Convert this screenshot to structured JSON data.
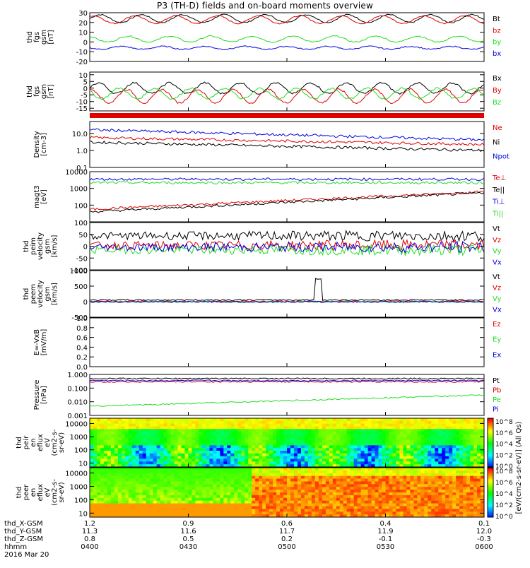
{
  "title": "P3 (TH-D) fields and on-board moments overview",
  "footer": {
    "row_labels": [
      "thd_X-GSM",
      "thd_Y-GSM",
      "thd_Z-GSM",
      "hhmm",
      "2016 Mar 20"
    ],
    "columns": [
      {
        "x": "1.2",
        "y": "11.3",
        "z": "0.8",
        "t": "0400"
      },
      {
        "x": "0.9",
        "y": "11.6",
        "z": "0.5",
        "t": "0430"
      },
      {
        "x": "0.6",
        "y": "11.7",
        "z": "0.2",
        "t": "0500"
      },
      {
        "x": "0.4",
        "y": "11.9",
        "z": "-0.1",
        "t": "0530"
      },
      {
        "x": "0.1",
        "y": "12.0",
        "z": "-0.3",
        "t": "0600"
      }
    ]
  },
  "colorbar": {
    "label": "[eV/(cm2-s-sr-eV)] (All Qs)",
    "ticks_ions": [
      "10^8",
      "10^6",
      "10^4",
      "10^2",
      "10^0"
    ],
    "ticks_electrons": [
      "10^8",
      "10^6",
      "10^4",
      "10^2",
      "10^0"
    ]
  },
  "colors": {
    "black": "#000000",
    "red": "#e00000",
    "green": "#22dd22",
    "blue": "#0000dd"
  },
  "chart_data": [
    {
      "id": "fgs",
      "type": "line",
      "ylabel": [
        "thd",
        "fgs",
        "gsm",
        "[nT]"
      ],
      "yticks": [
        "30",
        "20",
        "10",
        "0",
        "-10",
        "-20"
      ],
      "ylim": [
        -20,
        30
      ],
      "legend": [
        {
          "name": "Bt",
          "color": "#000000"
        },
        {
          "name": "bz",
          "color": "#e00000"
        },
        {
          "name": "by",
          "color": "#22dd22"
        },
        {
          "name": "bx",
          "color": "#0000dd"
        }
      ],
      "series": [
        {
          "name": "Bt",
          "base": 24,
          "amp": 4
        },
        {
          "name": "bz",
          "base": 23,
          "amp": 4
        },
        {
          "name": "by",
          "base": 3,
          "amp": 3
        },
        {
          "name": "bx",
          "base": -6,
          "amp": 1.5
        }
      ]
    },
    {
      "id": "fgs_dsl",
      "type": "line",
      "ylabel": [
        "thd",
        "fgs",
        "gsm",
        "[nT]"
      ],
      "yticks": [
        "10",
        "5",
        "0",
        "-5",
        "-10",
        "-15"
      ],
      "ylim": [
        -17,
        12
      ],
      "legend": [
        {
          "name": "Bx",
          "color": "#000000"
        },
        {
          "name": "By",
          "color": "#e00000"
        },
        {
          "name": "Bz",
          "color": "#22dd22"
        }
      ],
      "series": [
        {
          "name": "Bx",
          "base": 0,
          "amp": 4
        },
        {
          "name": "By",
          "base": -6,
          "amp": 5
        },
        {
          "name": "Bz",
          "base": -4,
          "amp": 4
        }
      ]
    },
    {
      "id": "density",
      "type": "line",
      "ylabel": [
        "Density",
        "[cm-3]"
      ],
      "yticks": [
        "10.0",
        "1.0",
        "0.1"
      ],
      "ylim": [
        0.1,
        50
      ],
      "log": true,
      "legend": [
        {
          "name": "Ne",
          "color": "#e00000"
        },
        {
          "name": "Ni",
          "color": "#000000"
        },
        {
          "name": "Npot",
          "color": "#0000dd"
        }
      ]
    },
    {
      "id": "temperature",
      "type": "line",
      "ylabel": [
        "magt3",
        "[eV]"
      ],
      "yticks": [
        "10000",
        "1000",
        "100"
      ],
      "ylim": [
        10,
        10000
      ],
      "log": true,
      "legend": [
        {
          "name": "Te⊥",
          "color": "#e00000"
        },
        {
          "name": "Te||",
          "color": "#000000"
        },
        {
          "name": "Ti⊥",
          "color": "#0000dd"
        },
        {
          "name": "Ti||",
          "color": "#22dd22"
        }
      ]
    },
    {
      "id": "peim_velocity",
      "type": "line",
      "ylabel": [
        "thd",
        "peim",
        "velocity",
        "gsm",
        "[km/s]"
      ],
      "yticks": [
        "100",
        "50",
        "0",
        "-50",
        "-100"
      ],
      "ylim": [
        -100,
        100
      ],
      "legend": [
        {
          "name": "Vt",
          "color": "#000000"
        },
        {
          "name": "Vz",
          "color": "#e00000"
        },
        {
          "name": "Vy",
          "color": "#22dd22"
        },
        {
          "name": "Vx",
          "color": "#0000dd"
        }
      ]
    },
    {
      "id": "peem_velocity",
      "type": "line",
      "ylabel": [
        "thd",
        "peem",
        "velocity",
        "gsm",
        "[km/s]"
      ],
      "yticks": [
        "1000",
        "500",
        "0",
        "-500"
      ],
      "ylim": [
        -500,
        1000
      ],
      "legend": [
        {
          "name": "Vt",
          "color": "#000000"
        },
        {
          "name": "Vz",
          "color": "#e00000"
        },
        {
          "name": "Vy",
          "color": "#22dd22"
        },
        {
          "name": "Vx",
          "color": "#0000dd"
        }
      ]
    },
    {
      "id": "efield",
      "type": "line",
      "ylabel": [
        "E=-VxB",
        "[mV/m]"
      ],
      "yticks": [
        "1.0",
        "0.8",
        "0.6",
        "0.4",
        "0.2",
        "0.0"
      ],
      "ylim": [
        0,
        1
      ],
      "legend": [
        {
          "name": "Ez",
          "color": "#e00000"
        },
        {
          "name": "Ey",
          "color": "#22dd22"
        },
        {
          "name": "Ex",
          "color": "#0000dd"
        }
      ]
    },
    {
      "id": "pressure",
      "type": "line",
      "ylabel": [
        "Pressure",
        "[nPa]"
      ],
      "yticks": [
        "1.000",
        "0.100",
        "0.010",
        "0.001"
      ],
      "ylim": [
        0.001,
        1
      ],
      "log": true,
      "legend": [
        {
          "name": "Pt",
          "color": "#000000"
        },
        {
          "name": "Pb",
          "color": "#e00000"
        },
        {
          "name": "Pe",
          "color": "#22dd22"
        },
        {
          "name": "Pi",
          "color": "#0000dd"
        }
      ]
    },
    {
      "id": "peir",
      "type": "heatmap",
      "ylabel": [
        "thd",
        "peir",
        "en",
        "eflux",
        "eV",
        "(cm2-s-",
        "sr-eV)"
      ],
      "yticks": [
        "10000",
        "1000",
        "100",
        "10"
      ],
      "ylim": [
        5,
        25000
      ],
      "log": true
    },
    {
      "id": "peer",
      "type": "heatmap",
      "ylabel": [
        "thd",
        "peer",
        "en",
        "eflux",
        "eV",
        "(cm2-s-",
        "sr-eV)"
      ],
      "yticks": [
        "10000",
        "1000",
        "100",
        "10"
      ],
      "ylim": [
        5,
        25000
      ],
      "log": true
    }
  ]
}
